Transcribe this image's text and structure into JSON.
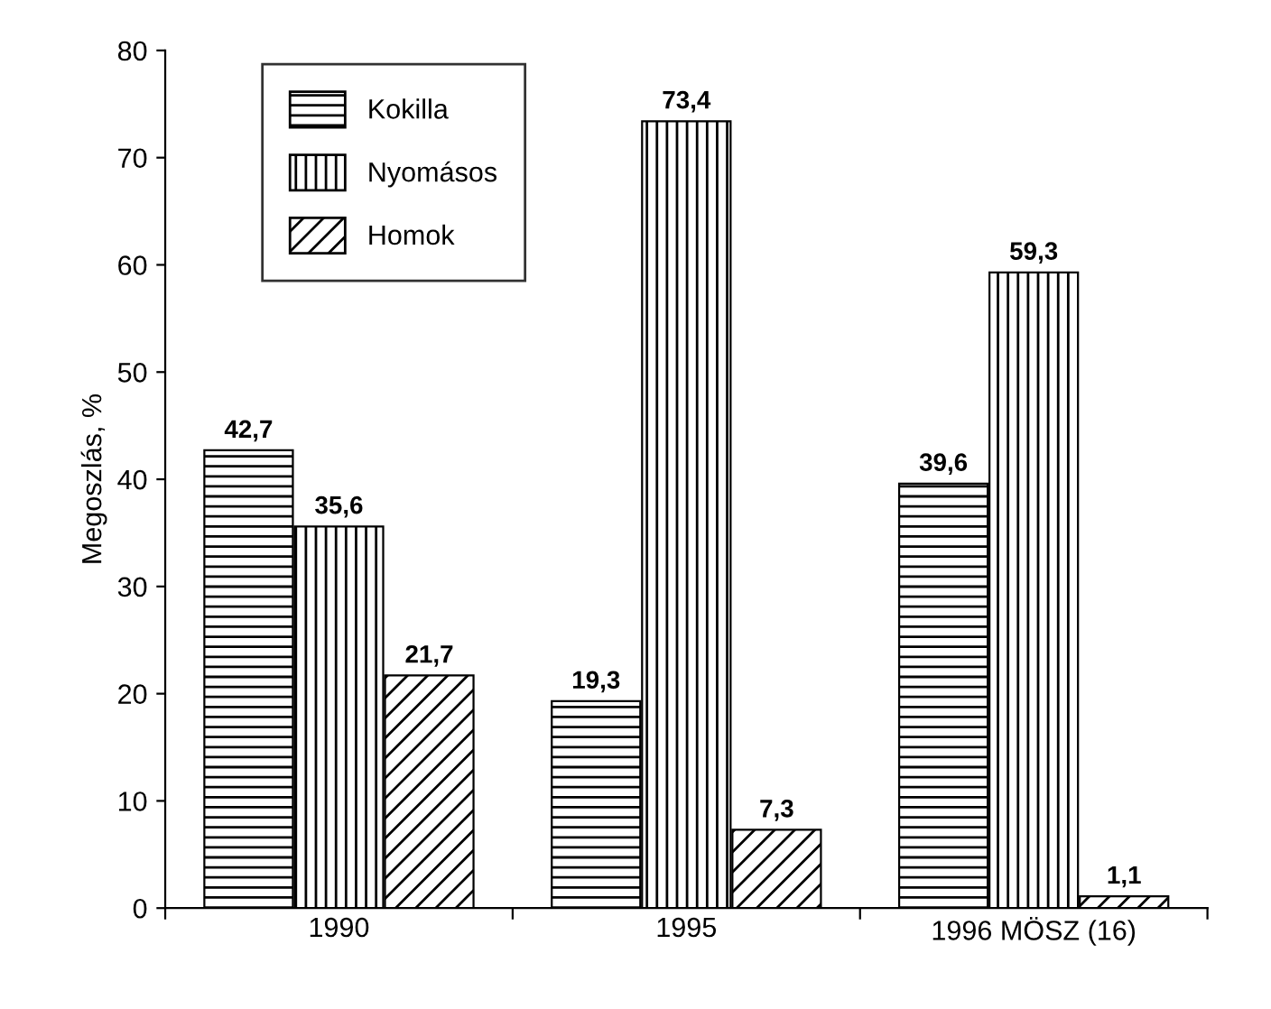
{
  "chart_data": {
    "type": "bar",
    "ylabel": "Megoszlás, %",
    "categories": [
      "1990",
      "1995",
      "1996 MÖSZ (16)"
    ],
    "series": [
      {
        "name": "Kokilla",
        "color": "#000000",
        "values": [
          42.7,
          19.3,
          39.6
        ],
        "value_labels": [
          "42,7",
          "19,3",
          "39,6"
        ]
      },
      {
        "name": "Nyomásos",
        "color": "#000000",
        "values": [
          35.6,
          73.4,
          59.3
        ],
        "value_labels": [
          "35,6",
          "73,4",
          "59,3"
        ]
      },
      {
        "name": "Homok",
        "color": "#000000",
        "values": [
          21.7,
          7.3,
          1.1
        ],
        "value_labels": [
          "21,7",
          "7,3",
          "1,1"
        ]
      }
    ],
    "ylim": [
      0,
      80
    ],
    "yticks": [
      0,
      10,
      20,
      30,
      40,
      50,
      60,
      70,
      80
    ],
    "grid": false,
    "legend": "top left"
  }
}
